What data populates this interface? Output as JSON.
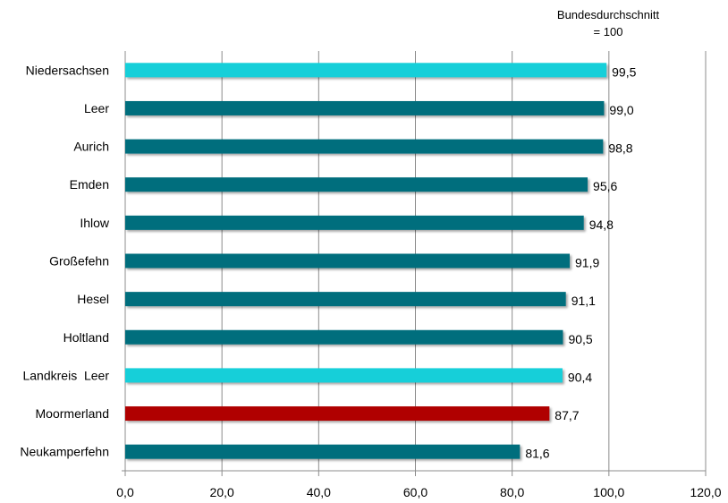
{
  "chart_data": {
    "type": "bar",
    "orientation": "horizontal",
    "categories": [
      "Niedersachsen",
      "Leer",
      "Aurich",
      "Emden",
      "Ihlow",
      "Großefehn",
      "Hesel",
      "Holtland",
      "Landkreis  Leer",
      "Moormerland",
      "Neukamperfehn"
    ],
    "values": [
      99.5,
      99.0,
      98.8,
      95.6,
      94.8,
      91.9,
      91.1,
      90.5,
      90.4,
      87.7,
      81.6
    ],
    "value_labels": [
      "99,5",
      "99,0",
      "98,8",
      "95,6",
      "94,8",
      "91,9",
      "91,1",
      "90,5",
      "90,4",
      "87,7",
      "81,6"
    ],
    "bar_colors": [
      "#12cfd9",
      "#006e7d",
      "#006e7d",
      "#006e7d",
      "#006e7d",
      "#006e7d",
      "#006e7d",
      "#006e7d",
      "#12cfd9",
      "#b00000",
      "#006e7d"
    ],
    "xlim": [
      0,
      120
    ],
    "xticks": [
      0,
      20,
      40,
      60,
      80,
      100,
      120
    ],
    "xtick_labels": [
      "0,0",
      "20,0",
      "40,0",
      "60,0",
      "80,0",
      "100,0",
      "120,0"
    ],
    "grid": "vertical",
    "reference_line": {
      "value": 100,
      "label_line1": "Bundesdurchschnitt",
      "label_line2": "= 100"
    }
  }
}
